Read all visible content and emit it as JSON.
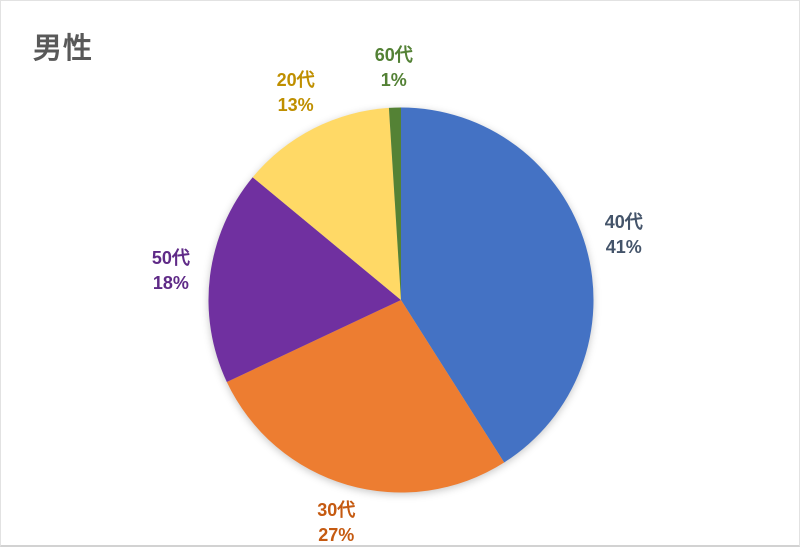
{
  "page": {
    "background": "#FFFFFF",
    "frame_border_color": "#E2E2E2"
  },
  "chart_data": {
    "type": "pie",
    "title": "男性",
    "title_color": "#595959",
    "legend": "none",
    "label_position": "outside-end",
    "start_angle_deg": 0,
    "direction": "clockwise",
    "categories": [
      "40代",
      "30代",
      "50代",
      "20代",
      "60代"
    ],
    "values": [
      41,
      27,
      18,
      13,
      1
    ],
    "slices": [
      {
        "label": "40代",
        "value": 41,
        "percent_label": "41%",
        "color": "#4472C4",
        "label_color": "#44546A"
      },
      {
        "label": "30代",
        "value": 27,
        "percent_label": "27%",
        "color": "#ED7D31",
        "label_color": "#C55A11"
      },
      {
        "label": "50代",
        "value": 18,
        "percent_label": "18%",
        "color": "#7030A0",
        "label_color": "#5F2A87"
      },
      {
        "label": "20代",
        "value": 13,
        "percent_label": "13%",
        "color": "#FFD966",
        "label_color": "#BF8F00"
      },
      {
        "label": "60代",
        "value": 1,
        "percent_label": "1%",
        "color": "#548235",
        "label_color": "#538135"
      }
    ]
  }
}
